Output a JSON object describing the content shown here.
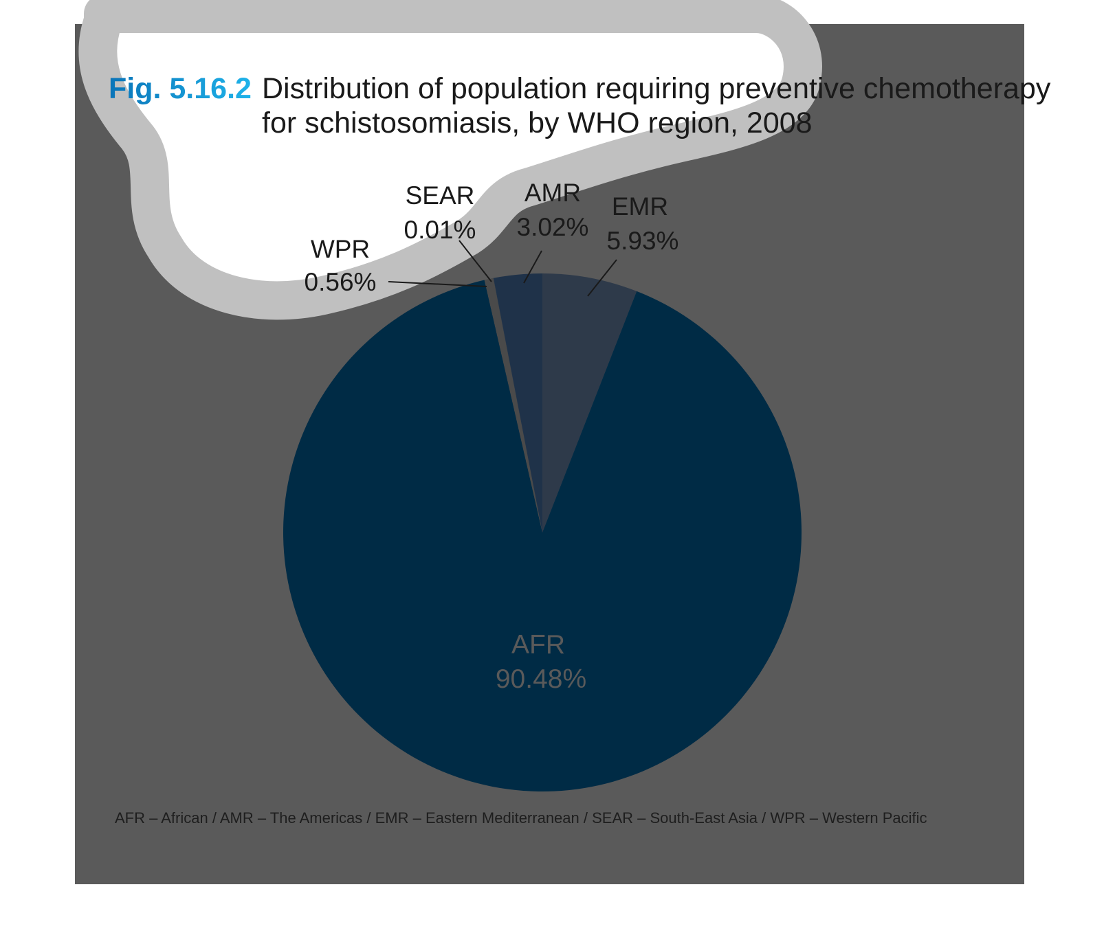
{
  "figure": {
    "number": "Fig. 5.16.2",
    "title_line1": "Distribution of population requiring preventive chemotherapy",
    "title_line2": "for schistosomiasis, by WHO region, 2008",
    "footnote": "AFR – African / AMR – The Americas / EMR – Eastern Mediterranean / SEAR – South-East Asia / WPR – Western Pacific"
  },
  "colors": {
    "background_panel": "#5a5a5a",
    "cloud_fill": "#ffffff",
    "cloud_stroke": "#c0c0c0",
    "fig_number_start": "#0a74b8",
    "fig_number_end": "#1fb3ea",
    "AFR": "#002b45",
    "AMR": "#1f3249",
    "EMR": "#2e3a4a",
    "SEAR": "#2a3545",
    "WPR": "#4a4a4a"
  },
  "chart_data": {
    "type": "pie",
    "title": "Distribution of population requiring preventive chemotherapy for schistosomiasis, by WHO region, 2008",
    "slices": [
      {
        "region": "EMR",
        "value": 5.93,
        "label": "EMR",
        "value_text": "5.93%"
      },
      {
        "region": "AFR",
        "value": 90.48,
        "label": "AFR",
        "value_text": "90.48%"
      },
      {
        "region": "WPR",
        "value": 0.56,
        "label": "WPR",
        "value_text": "0.56%"
      },
      {
        "region": "SEAR",
        "value": 0.01,
        "label": "SEAR",
        "value_text": "0.01%"
      },
      {
        "region": "AMR",
        "value": 3.02,
        "label": "AMR",
        "value_text": "3.02%"
      }
    ]
  }
}
